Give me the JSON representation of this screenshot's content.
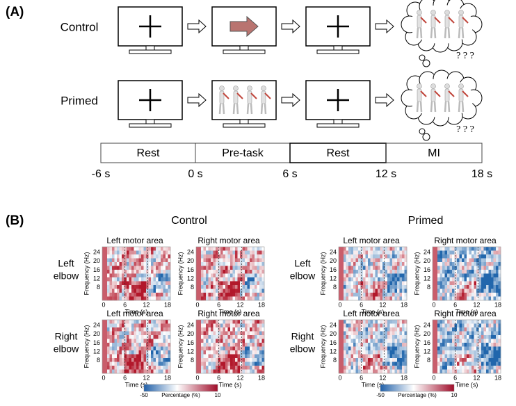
{
  "panel_a": {
    "label": "(A)",
    "rows": [
      {
        "name": "Control",
        "thought": "? ? ?"
      },
      {
        "name": "Primed",
        "thought": "? ? ?"
      }
    ],
    "timeline": {
      "phases": [
        "Rest",
        "Pre-task",
        "Rest",
        "MI"
      ],
      "times": [
        "-6 s",
        "0 s",
        "6 s",
        "12 s",
        "18 s"
      ]
    }
  },
  "panel_b": {
    "label": "(B)",
    "y_axis_label": "Frequency (Hz)",
    "x_axis_label": "Time (s)",
    "yticks": [
      24,
      20,
      16,
      12,
      8
    ],
    "xticks": [
      0,
      6,
      12,
      18
    ],
    "row_labels": [
      [
        "Left",
        "elbow"
      ],
      [
        "Right",
        "elbow"
      ]
    ],
    "groups": [
      {
        "title": "Control",
        "panels": [
          "Left  motor area",
          "Right motor area",
          "Left motor area",
          "Right motor area"
        ]
      },
      {
        "title": "Primed",
        "panels": [
          "Left motor area",
          "Right motor area",
          "Left motor area",
          "Right motor area"
        ]
      }
    ],
    "colorbar": {
      "min": "-50",
      "max": "10",
      "label": "Percentage (%)"
    }
  }
}
